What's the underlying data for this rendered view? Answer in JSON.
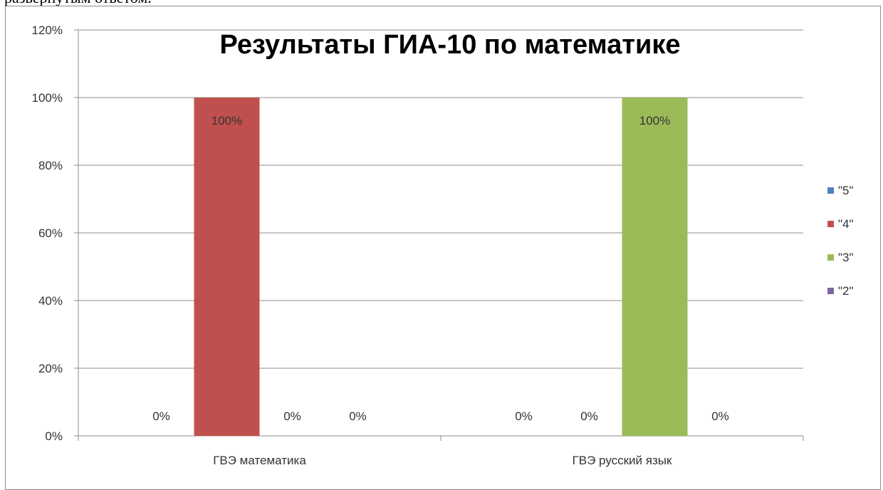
{
  "page": {
    "clipped_text": "развернутым ответом."
  },
  "chart_data": {
    "type": "bar",
    "title": "Результаты ГИА-10 по математике",
    "xlabel": "",
    "ylabel": "",
    "categories": [
      "ГВЭ математика",
      "ГВЭ русский язык"
    ],
    "series": [
      {
        "name": "\"5\"",
        "values": [
          0,
          0
        ],
        "color": "#4F81BD",
        "labels": [
          "0%",
          "0%"
        ]
      },
      {
        "name": "\"4\"",
        "values": [
          100,
          0
        ],
        "color": "#C0504D",
        "labels": [
          "100%",
          "0%"
        ]
      },
      {
        "name": "\"3\"",
        "values": [
          0,
          100
        ],
        "color": "#9BBB59",
        "labels": [
          "0%",
          "100%"
        ]
      },
      {
        "name": "\"2\"",
        "values": [
          0,
          0
        ],
        "color": "#8064A2",
        "labels": [
          "0%",
          "0%"
        ]
      }
    ],
    "ylim": [
      0,
      120
    ],
    "yticks": [
      "0%",
      "20%",
      "40%",
      "60%",
      "80%",
      "100%",
      "120%"
    ],
    "grid": true,
    "legend_position": "right"
  }
}
